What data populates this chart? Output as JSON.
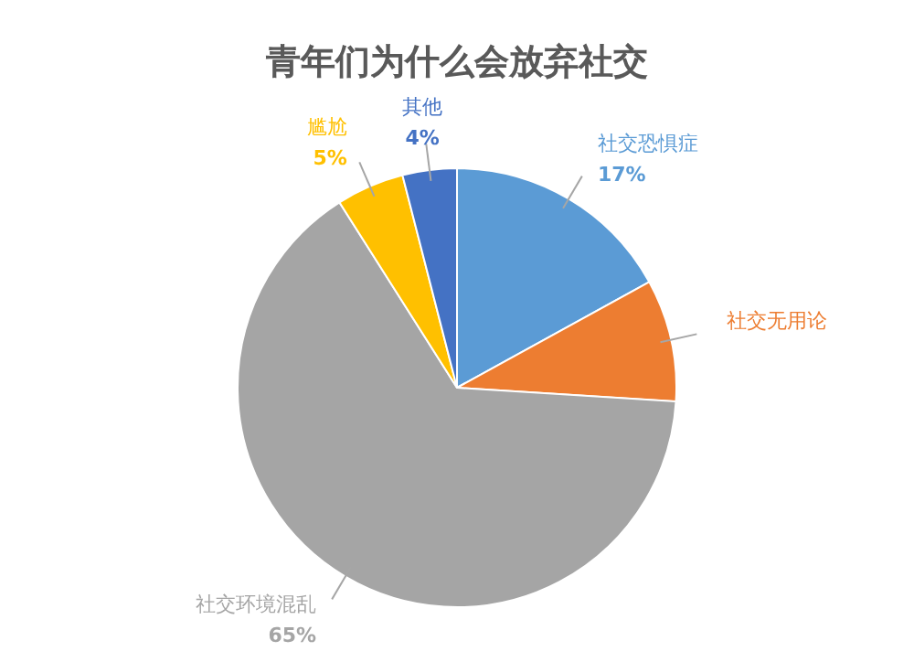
{
  "chart_data": {
    "type": "pie",
    "title": "青年们为什么会放弃社交",
    "categories": [
      "社交恐惧症",
      "社交无用论",
      "社交环境混乱",
      "尴尬",
      "其他"
    ],
    "values": [
      17,
      9,
      65,
      5,
      4
    ],
    "colors": [
      "#5b9bd5",
      "#ed7d31",
      "#a5a5a5",
      "#ffc000",
      "#4472c4"
    ],
    "value_labels": [
      "17%",
      null,
      "65%",
      "5%",
      "4%"
    ]
  }
}
